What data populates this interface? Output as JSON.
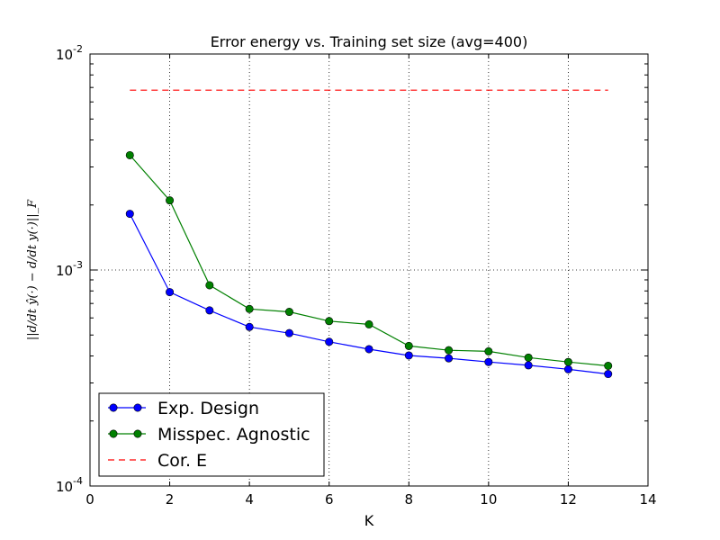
{
  "chart_data": {
    "type": "line",
    "title": "Error energy vs. Training set size (avg=400)",
    "xlabel": "K",
    "ylabel": "||d/dt ŷ(·) − d/dt y(·)||_F",
    "xlim": [
      0,
      14
    ],
    "ylim": [
      0.0001,
      0.01
    ],
    "yscale": "log",
    "grid": true,
    "x_ticks": [
      0,
      2,
      4,
      6,
      8,
      10,
      12,
      14
    ],
    "y_ticks": [
      {
        "value": 0.0001,
        "base": "10",
        "exp": "-4"
      },
      {
        "value": 0.001,
        "base": "10",
        "exp": "-3"
      },
      {
        "value": 0.01,
        "base": "10",
        "exp": "-2"
      }
    ],
    "legend_position": "lower-left",
    "series": [
      {
        "name": "Exp. Design",
        "color": "#0000ff",
        "style": "solid",
        "marker": "circle",
        "x": [
          1,
          2,
          3,
          4,
          5,
          6,
          7,
          8,
          9,
          10,
          11,
          12,
          13
        ],
        "y": [
          0.00182,
          0.00079,
          0.00065,
          0.000545,
          0.00051,
          0.000465,
          0.00043,
          0.000402,
          0.00039,
          0.000375,
          0.000362,
          0.000347,
          0.00033
        ]
      },
      {
        "name": "Misspec. Agnostic",
        "color": "#008000",
        "style": "solid",
        "marker": "circle",
        "x": [
          1,
          2,
          3,
          4,
          5,
          6,
          7,
          8,
          9,
          10,
          11,
          12,
          13
        ],
        "y": [
          0.0034,
          0.0021,
          0.00085,
          0.00066,
          0.00064,
          0.00058,
          0.00056,
          0.000445,
          0.000425,
          0.00042,
          0.000393,
          0.000375,
          0.00036
        ]
      },
      {
        "name": "Cor. E",
        "color": "#ff0000",
        "style": "dashed",
        "marker": "none",
        "x": [
          1,
          13
        ],
        "y": [
          0.0068,
          0.0068
        ]
      }
    ]
  }
}
